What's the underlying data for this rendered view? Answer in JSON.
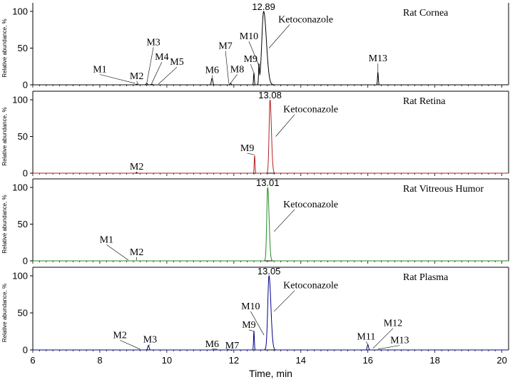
{
  "chart_data": {
    "type": "line",
    "xlabel": "Time, min",
    "xlim": [
      6,
      20.2
    ],
    "x_ticks": [
      "6",
      "8",
      "10",
      "12",
      "14",
      "16",
      "18",
      "20"
    ],
    "panels": [
      {
        "sample": "Rat Cornea",
        "ylabel": "Relative abundance, %",
        "ylim": [
          0,
          100
        ],
        "y_ticks": [
          "0",
          "50",
          "100"
        ],
        "color": "#000000",
        "main_peak": {
          "time": 12.89,
          "label": "12.89",
          "height": 100,
          "width": 0.11,
          "compound": "Ketoconazole"
        },
        "minor_peaks": [
          {
            "time": 9.1,
            "height": 1
          },
          {
            "time": 9.4,
            "height": 2
          },
          {
            "time": 9.55,
            "height": 1
          },
          {
            "time": 11.35,
            "height": 9
          },
          {
            "time": 11.9,
            "height": 2
          },
          {
            "time": 12.6,
            "height": 16
          },
          {
            "time": 12.75,
            "height": 25
          },
          {
            "time": 16.3,
            "height": 17
          }
        ],
        "annotations": [
          {
            "label": "M1",
            "time": 9.05,
            "value": 2,
            "label_time": 8.0,
            "label_value": 17
          },
          {
            "label": "M2",
            "time": 9.15,
            "value": 1,
            "label_time": 9.1,
            "label_value": 8
          },
          {
            "label": "M3",
            "time": 9.4,
            "value": 2,
            "label_time": 9.6,
            "label_value": 54
          },
          {
            "label": "M4",
            "time": 9.55,
            "value": 2,
            "label_time": 9.85,
            "label_value": 34
          },
          {
            "label": "M5",
            "time": 9.75,
            "value": 1,
            "label_time": 10.3,
            "label_value": 27
          },
          {
            "label": "M6",
            "time": 11.35,
            "value": 10,
            "label_time": 11.35,
            "label_value": 16
          },
          {
            "label": "M7",
            "time": 11.85,
            "value": 2,
            "label_time": 11.75,
            "label_value": 49
          },
          {
            "label": "M8",
            "time": 11.9,
            "value": 2,
            "label_time": 12.1,
            "label_value": 17
          },
          {
            "label": "M9",
            "time": 12.6,
            "value": 16,
            "label_time": 12.5,
            "label_value": 31
          },
          {
            "label": "M10",
            "time": 12.75,
            "value": 26,
            "label_time": 12.45,
            "label_value": 62
          },
          {
            "label": "Ketoconazole",
            "time": 13.05,
            "value": 50,
            "label_time": 14.05,
            "label_value": 85
          },
          {
            "label": "M13",
            "time": 16.3,
            "value": 17,
            "label_time": 16.3,
            "label_value": 32
          }
        ]
      },
      {
        "sample": "Rat Retina",
        "ylabel": "Relative abundance, %",
        "ylim": [
          0,
          100
        ],
        "y_ticks": [
          "0",
          "50",
          "100"
        ],
        "color": "#b22222",
        "main_peak": {
          "time": 13.08,
          "label": "13.08",
          "height": 100,
          "width": 0.055,
          "compound": "Ketoconazole"
        },
        "minor_peaks": [
          {
            "time": 12.62,
            "height": 24
          },
          {
            "time": 9.1,
            "height": 1
          }
        ],
        "annotations": [
          {
            "label": "M2",
            "time": 9.1,
            "value": 1,
            "label_time": 9.1,
            "label_value": 5
          },
          {
            "label": "M9",
            "time": 12.62,
            "value": 25,
            "label_time": 12.4,
            "label_value": 30
          },
          {
            "label": "Ketoconazole",
            "time": 13.25,
            "value": 50,
            "label_time": 14.2,
            "label_value": 83
          }
        ]
      },
      {
        "sample": "Rat Vitreous Humor",
        "ylabel": "Relative abundance, %",
        "ylim": [
          0,
          100
        ],
        "y_ticks": [
          "0",
          "50",
          "100"
        ],
        "color": "#228b22",
        "main_peak": {
          "time": 13.01,
          "label": "13.01",
          "height": 100,
          "width": 0.055,
          "compound": "Ketoconazole"
        },
        "minor_peaks": [],
        "annotations": [
          {
            "label": "M1",
            "time": 8.85,
            "value": 1,
            "label_time": 8.2,
            "label_value": 25
          },
          {
            "label": "M2",
            "time": 9.1,
            "value": 1,
            "label_time": 9.1,
            "label_value": 8
          },
          {
            "label": "Ketoconazole",
            "time": 13.2,
            "value": 40,
            "label_time": 14.2,
            "label_value": 73
          }
        ]
      },
      {
        "sample": "Rat Plasma",
        "ylabel": "Relative abundance, %",
        "ylim": [
          0,
          100
        ],
        "y_ticks": [
          "0",
          "50",
          "100"
        ],
        "color": "#00008b",
        "main_peak": {
          "time": 13.05,
          "label": "13.05",
          "height": 100,
          "width": 0.075,
          "compound": "Ketoconazole"
        },
        "minor_peaks": [
          {
            "time": 9.45,
            "height": 6
          },
          {
            "time": 12.6,
            "height": 25
          },
          {
            "time": 16.0,
            "height": 7
          }
        ],
        "annotations": [
          {
            "label": "M2",
            "time": 9.2,
            "value": 1,
            "label_time": 8.6,
            "label_value": 16
          },
          {
            "label": "M3",
            "time": 9.45,
            "value": 6,
            "label_time": 9.5,
            "label_value": 10
          },
          {
            "label": "M6",
            "time": 11.5,
            "value": 1,
            "label_time": 11.35,
            "label_value": 4
          },
          {
            "label": "M7",
            "time": 11.8,
            "value": 1,
            "label_time": 11.95,
            "label_value": 2
          },
          {
            "label": "M9",
            "time": 12.62,
            "value": 25,
            "label_time": 12.45,
            "label_value": 30
          },
          {
            "label": "M10",
            "time": 12.9,
            "value": 20,
            "label_time": 12.5,
            "label_value": 55
          },
          {
            "label": "Ketoconazole",
            "time": 13.2,
            "value": 52,
            "label_time": 14.2,
            "label_value": 83
          },
          {
            "label": "M11",
            "time": 16.0,
            "value": 7,
            "label_time": 15.95,
            "label_value": 14
          },
          {
            "label": "M12",
            "time": 16.15,
            "value": 2,
            "label_time": 16.75,
            "label_value": 32
          },
          {
            "label": "M13",
            "time": 16.3,
            "value": 1,
            "label_time": 16.95,
            "label_value": 9
          }
        ]
      }
    ]
  }
}
